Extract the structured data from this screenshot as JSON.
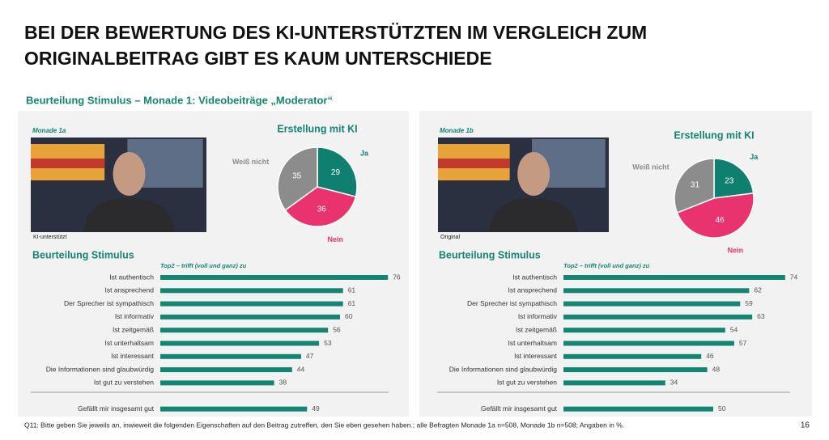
{
  "header": {
    "title_lines": [
      "BEI DER BEWERTUNG DES KI-UNTERSTÜTZTEN IM VERGLEICH ZUM",
      "ORIGINALBEITRAG GIBT ES KAUM UNTERSCHIEDE"
    ],
    "subtitle": "Beurteilung Stimulus – Monade 1: Videobeiträge „Moderator“"
  },
  "panels": [
    {
      "label": "Monade 1a",
      "image_caption": "KI-unterstützt"
    },
    {
      "label": "Monade 1b",
      "image_caption": "Original"
    }
  ],
  "chart_data": [
    {
      "type": "pie",
      "title": "Erstellung mit KI",
      "categories": [
        "Ja",
        "Nein",
        "Weiß nicht"
      ],
      "values": [
        29,
        36,
        35
      ],
      "colors": [
        "#0f7f6f",
        "#e8336e",
        "#8c8c8c"
      ]
    },
    {
      "type": "bar",
      "orientation": "horizontal",
      "title": "Beurteilung Stimulus",
      "subtitle": "Top2 – trifft (voll und ganz) zu",
      "categories": [
        "Ist authentisch",
        "Ist ansprechend",
        "Der Sprecher ist sympathisch",
        "Ist informativ",
        "Ist zeitgemäß",
        "Ist unterhaltsam",
        "Ist interessant",
        "Die Informationen sind glaubwürdig",
        "Ist gut zu verstehen",
        "Gefällt mir insgesamt gut"
      ],
      "values": [
        76,
        61,
        61,
        60,
        56,
        53,
        47,
        44,
        38,
        49
      ],
      "color": "#138571"
    },
    {
      "type": "pie",
      "title": "Erstellung mit KI",
      "categories": [
        "Ja",
        "Nein",
        "Weiß nicht"
      ],
      "values": [
        23,
        46,
        31
      ],
      "colors": [
        "#0f7f6f",
        "#e8336e",
        "#8c8c8c"
      ]
    },
    {
      "type": "bar",
      "orientation": "horizontal",
      "title": "Beurteilung Stimulus",
      "subtitle": "Top2 – trifft (voll und ganz) zu",
      "categories": [
        "Ist authentisch",
        "Ist ansprechend",
        "Der Sprecher ist sympathisch",
        "Ist informativ",
        "Ist zeitgemäß",
        "Ist unterhaltsam",
        "Ist interessant",
        "Die Informationen sind glaubwürdig",
        "Ist gut zu verstehen",
        "Gefällt mir insgesamt gut"
      ],
      "values": [
        74,
        62,
        59,
        63,
        54,
        57,
        46,
        48,
        34,
        50
      ],
      "color": "#138571"
    }
  ],
  "footer": {
    "note": "Q11: Bitte geben Sie jeweils an, inwieweit die folgenden Eigenschaften auf den Beitrag zutreffen, den Sie eben gesehen haben.; alle Befragten Monade 1a n=508, Monade 1b n=508; Angaben in %.",
    "page": 16
  }
}
